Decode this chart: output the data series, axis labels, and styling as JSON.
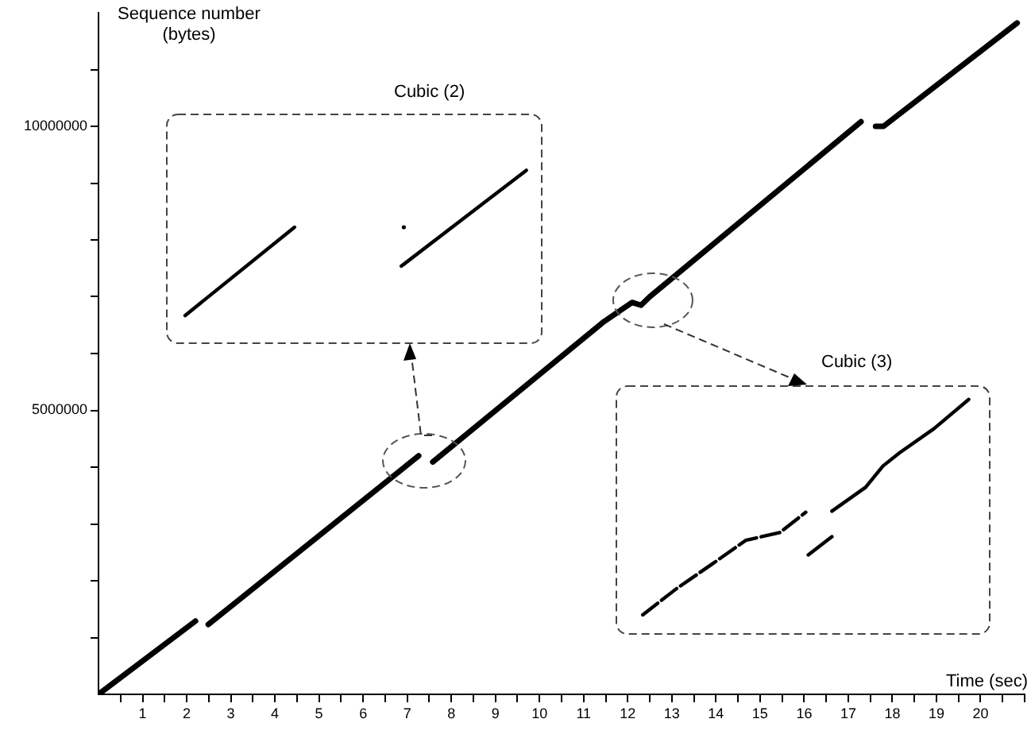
{
  "chart_data": {
    "type": "line",
    "xlabel": "Time (sec)",
    "ylabel": "Sequence number (bytes)",
    "annotations": [
      "Cubic (2)",
      "Cubic (3)"
    ],
    "x": [
      0,
      2.2,
      2.3,
      2.49,
      7.26,
      7.4,
      7.58,
      11.44,
      12.1,
      12.3,
      12.5,
      17.29,
      17.45,
      17.62,
      17.8,
      20.83
    ],
    "series": [
      {
        "color": "#000000",
        "values": [
          0,
          1290000,
          null,
          1230000,
          4200000,
          null,
          4090000,
          6550000,
          6900000,
          6850000,
          7000000,
          10080000,
          null,
          10000000,
          10000000,
          11820000
        ]
      }
    ],
    "xlim": [
      0,
      21
    ],
    "ylim": [
      0,
      12000000
    ],
    "xticks": [
      {
        "value": 0.5,
        "label": null
      },
      1,
      {
        "value": 1.5,
        "label": null
      },
      2,
      {
        "value": 2.5,
        "label": null
      },
      3,
      {
        "value": 3.5,
        "label": null
      },
      4,
      {
        "value": 4.5,
        "label": null
      },
      5,
      {
        "value": 5.5,
        "label": null
      },
      6,
      {
        "value": 6.5,
        "label": null
      },
      7,
      {
        "value": 7.5,
        "label": null
      },
      8,
      {
        "value": 8.5,
        "label": null
      },
      9,
      {
        "value": 9.5,
        "label": null
      },
      10,
      {
        "value": 10.5,
        "label": null
      },
      11,
      {
        "value": 11.5,
        "label": null
      },
      12,
      {
        "value": 12.5,
        "label": null
      },
      13,
      {
        "value": 13.5,
        "label": null
      },
      14,
      {
        "value": 14.5,
        "label": null
      },
      15,
      {
        "value": 15.5,
        "label": null
      },
      16,
      {
        "value": 16.5,
        "label": null
      },
      17,
      {
        "value": 17.5,
        "label": null
      },
      18,
      {
        "value": 18.5,
        "label": null
      },
      19,
      {
        "value": 19.5,
        "label": null
      },
      20,
      {
        "value": 20.5,
        "label": null
      },
      {
        "value": 21,
        "label": null
      }
    ],
    "yticks": [
      {
        "value": 1000000,
        "label": null
      },
      {
        "value": 2000000,
        "label": null
      },
      {
        "value": 3000000,
        "label": null
      },
      {
        "value": 4000000,
        "label": null
      },
      5000000,
      {
        "value": 6000000,
        "label": null
      },
      {
        "value": 7000000,
        "label": null
      },
      {
        "value": 8000000,
        "label": null
      },
      {
        "value": 9000000,
        "label": null
      },
      10000000,
      {
        "value": 11000000,
        "label": null
      }
    ],
    "grid": false,
    "legend": false,
    "marker": "none",
    "line_style": "solid"
  }
}
